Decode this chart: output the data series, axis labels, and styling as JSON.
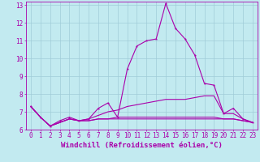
{
  "xlabel": "Windchill (Refroidissement éolien,°C)",
  "xlim": [
    -0.5,
    23.5
  ],
  "ylim": [
    6.0,
    13.2
  ],
  "yticks": [
    6,
    7,
    8,
    9,
    10,
    11,
    12,
    13
  ],
  "xticks": [
    0,
    1,
    2,
    3,
    4,
    5,
    6,
    7,
    8,
    9,
    10,
    11,
    12,
    13,
    14,
    15,
    16,
    17,
    18,
    19,
    20,
    21,
    22,
    23
  ],
  "bg_color": "#c2eaf0",
  "grid_color": "#a0ccd8",
  "line_color": "#aa00aa",
  "line1_x": [
    0,
    1,
    2,
    3,
    4,
    5,
    6,
    7,
    8,
    9,
    10,
    11,
    12,
    13,
    14,
    15,
    16,
    17,
    18,
    19,
    20,
    21,
    22,
    23
  ],
  "line1_y": [
    7.3,
    6.7,
    6.2,
    6.5,
    6.7,
    6.5,
    6.6,
    7.2,
    7.5,
    6.7,
    9.4,
    10.7,
    11.0,
    11.1,
    13.1,
    11.7,
    11.1,
    10.2,
    8.6,
    8.5,
    6.9,
    7.2,
    6.6,
    6.4
  ],
  "line2_x": [
    0,
    1,
    2,
    3,
    4,
    5,
    6,
    7,
    8,
    9,
    10,
    11,
    12,
    13,
    14,
    15,
    16,
    17,
    18,
    19,
    20,
    21,
    22,
    23
  ],
  "line2_y": [
    7.3,
    6.7,
    6.2,
    6.4,
    6.6,
    6.5,
    6.6,
    6.8,
    7.0,
    7.1,
    7.3,
    7.4,
    7.5,
    7.6,
    7.7,
    7.7,
    7.7,
    7.8,
    7.9,
    7.9,
    6.9,
    6.9,
    6.6,
    6.4
  ],
  "line3_x": [
    0,
    1,
    2,
    3,
    4,
    5,
    6,
    7,
    8,
    9,
    10,
    11,
    12,
    13,
    14,
    15,
    16,
    17,
    18,
    19,
    20,
    21,
    22,
    23
  ],
  "line3_y": [
    7.3,
    6.7,
    6.2,
    6.4,
    6.6,
    6.5,
    6.5,
    6.6,
    6.6,
    6.6,
    6.6,
    6.6,
    6.6,
    6.6,
    6.6,
    6.6,
    6.6,
    6.6,
    6.6,
    6.6,
    6.6,
    6.6,
    6.5,
    6.4
  ],
  "line4_x": [
    0,
    1,
    2,
    3,
    4,
    5,
    6,
    7,
    8,
    9,
    10,
    11,
    12,
    13,
    14,
    15,
    16,
    17,
    18,
    19,
    20,
    21,
    22,
    23
  ],
  "line4_y": [
    7.3,
    6.7,
    6.2,
    6.4,
    6.6,
    6.5,
    6.5,
    6.6,
    6.6,
    6.7,
    6.7,
    6.7,
    6.7,
    6.7,
    6.7,
    6.7,
    6.7,
    6.7,
    6.7,
    6.7,
    6.6,
    6.6,
    6.5,
    6.4
  ],
  "tick_fontsize": 5.5,
  "xlabel_fontsize": 6.5
}
